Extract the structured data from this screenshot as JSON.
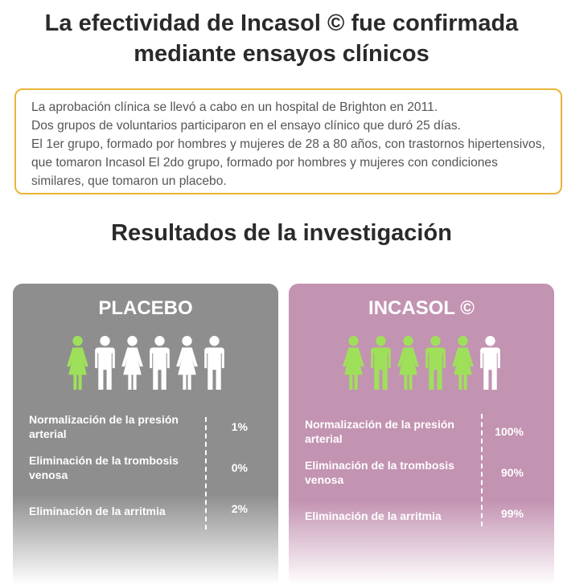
{
  "colors": {
    "accent": "#e8b53a",
    "placebo": "#8e8e8e",
    "incasol": "#c393b2",
    "green": "#9fe05a",
    "white": "#ffffff"
  },
  "header": {
    "title": "La efectividad de Incasol © fue confirmada mediante ensayos clínicos"
  },
  "info": {
    "line1": "La aprobación clínica se llevó a cabo en un hospital de Brighton en 2011.",
    "line2": "Dos grupos de voluntarios participaron en el ensayo clínico que duró 25 días.",
    "line3": "El 1er grupo, formado por hombres y mujeres de 28 a 80 años, con trastornos hipertensivos, que tomaron Incasol El 2do grupo, formado por hombres y mujeres con condiciones similares, que tomaron un placebo."
  },
  "results": {
    "title": "Resultados de la investigación"
  },
  "placebo": {
    "name": "PLACEBO",
    "people": [
      "woman-green",
      "man-white",
      "woman-white",
      "man-white",
      "woman-white",
      "man-white"
    ],
    "stats": [
      {
        "label": "Normalización de la presión arterial",
        "value": "1%"
      },
      {
        "label": "Eliminación de la trombosis venosa",
        "value": "0%"
      },
      {
        "label": "Eliminación de la arritmia",
        "value": "2%"
      }
    ]
  },
  "incasol": {
    "name": "INCASOL ©",
    "people": [
      "woman-green",
      "man-green",
      "woman-green",
      "man-green",
      "woman-green",
      "man-white"
    ],
    "stats": [
      {
        "label": "Normalización de la presión arterial",
        "value": "100%"
      },
      {
        "label": "Eliminación de la trombosis venosa",
        "value": "90%"
      },
      {
        "label": "Eliminación de la arritmia",
        "value": "99%"
      }
    ]
  }
}
